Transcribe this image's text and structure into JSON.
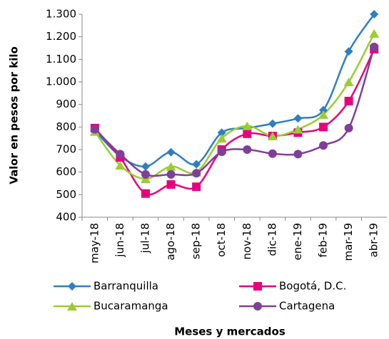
{
  "chart_data": {
    "type": "line",
    "ylabel": "Valor en pesos por kilo",
    "xlabel": "Meses  y mercados",
    "categories": [
      "may-18",
      "jun-18",
      "jul-18",
      "ago-18",
      "sep-18",
      "oct-18",
      "nov-18",
      "dic-18",
      "ene-19",
      "feb-19",
      "mar-19",
      "abr-19"
    ],
    "series": [
      {
        "name": "Barranquilla",
        "color": "#2e7fc0",
        "marker": "diamond",
        "values": [
          785,
          670,
          625,
          688,
          635,
          775,
          795,
          815,
          838,
          875,
          1135,
          1300
        ]
      },
      {
        "name": "Bogotá, D.C.",
        "color": "#e6007e",
        "marker": "square",
        "values": [
          795,
          665,
          505,
          545,
          535,
          700,
          770,
          760,
          775,
          800,
          915,
          1145
        ]
      },
      {
        "name": "Bucaramanga",
        "color": "#9acd32",
        "marker": "triangle",
        "values": [
          780,
          630,
          570,
          625,
          600,
          750,
          805,
          760,
          790,
          855,
          1000,
          1215
        ]
      },
      {
        "name": "Cartagena",
        "color": "#7f3f98",
        "marker": "circle",
        "values": [
          790,
          680,
          590,
          590,
          595,
          690,
          700,
          682,
          680,
          718,
          795,
          1155
        ]
      }
    ],
    "ylim": [
      400,
      1300
    ],
    "yticks": [
      400,
      500,
      600,
      700,
      800,
      900,
      {
        "value": 1000,
        "label": "1.000"
      },
      {
        "value": 1100,
        "label": "1.100"
      },
      {
        "value": 1200,
        "label": "1.200"
      },
      {
        "value": 1300,
        "label": "1.300"
      }
    ],
    "grid": false,
    "legend": "bottom"
  }
}
